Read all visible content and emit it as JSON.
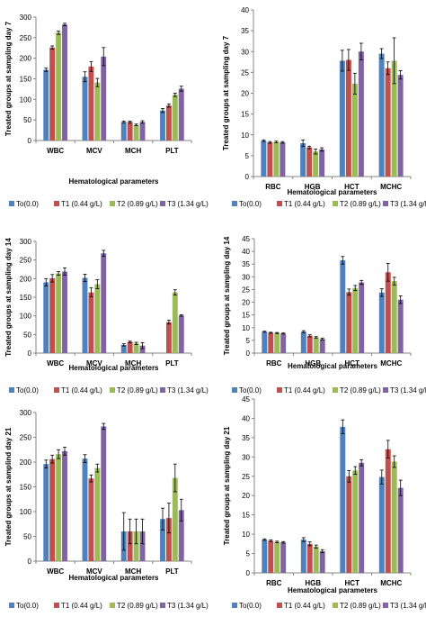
{
  "colors": {
    "series": [
      "#4F81BD",
      "#C0504D",
      "#9BBB59",
      "#8064A2"
    ],
    "axis": "#868686",
    "errorbar": "#000000"
  },
  "chart_data": [
    {
      "type": "bar",
      "ylabel": "Treated groups at sampling day 7",
      "xlabel": "Hematological parameters",
      "categories": [
        "WBC",
        "MCV",
        "MCH",
        "PLT"
      ],
      "ylim": [
        0,
        300
      ],
      "yticks": [
        0,
        50,
        100,
        150,
        200,
        250,
        300
      ],
      "grid": false,
      "legend_position": "bottom",
      "series": [
        {
          "name": "To(0.0)",
          "values": [
            172,
            155,
            45,
            73
          ],
          "errors": [
            4,
            12,
            2,
            5
          ]
        },
        {
          "name": "T1 (0.44 g/L)",
          "values": [
            226,
            180,
            45,
            85
          ],
          "errors": [
            4,
            12,
            2,
            4
          ]
        },
        {
          "name": "T2 (0.89 g/L)",
          "values": [
            262,
            141,
            38,
            111
          ],
          "errors": [
            4,
            10,
            2,
            4
          ]
        },
        {
          "name": "T3 (1.34 g/L)",
          "values": [
            282,
            204,
            45,
            126
          ],
          "errors": [
            3,
            22,
            3,
            6
          ]
        }
      ]
    },
    {
      "type": "bar",
      "ylabel": "Treated groups at sampling day 7",
      "xlabel": "Hematological parameters",
      "categories": [
        "RBC",
        "HGB",
        "HCT",
        "MCHC"
      ],
      "ylim": [
        0,
        40
      ],
      "yticks": [
        0,
        5,
        10,
        15,
        20,
        25,
        30,
        35,
        40
      ],
      "grid": false,
      "legend_position": "bottom",
      "series": [
        {
          "name": "To(0.0)",
          "values": [
            8.6,
            8.0,
            27.8,
            29.5
          ],
          "errors": [
            0.2,
            0.8,
            2.5,
            1.2
          ]
        },
        {
          "name": "T1 (0.44 g/L)",
          "values": [
            8.2,
            7.0,
            28.0,
            26.0
          ],
          "errors": [
            0.2,
            0.3,
            2.5,
            1.5
          ]
        },
        {
          "name": "T2 (0.89 g/L)",
          "values": [
            8.3,
            6.0,
            22.3,
            27.8
          ],
          "errors": [
            0.2,
            0.6,
            2.5,
            5.5
          ]
        },
        {
          "name": "T3 (1.34 g/L)",
          "values": [
            8.2,
            6.5,
            30.0,
            24.4
          ],
          "errors": [
            0.2,
            0.4,
            2.0,
            1.0
          ]
        }
      ]
    },
    {
      "type": "bar",
      "ylabel": "Treated groups at sampling day 14",
      "xlabel": "Hematological parameters",
      "categories": [
        "WBC",
        "MCV",
        "MCH",
        "PLT"
      ],
      "ylim": [
        0,
        300
      ],
      "yticks": [
        0,
        50,
        100,
        150,
        200,
        250,
        300
      ],
      "grid": false,
      "legend_position": "bottom",
      "series": [
        {
          "name": "To(0.0)",
          "values": [
            190,
            202,
            22,
            0
          ],
          "errors": [
            10,
            10,
            3,
            0
          ]
        },
        {
          "name": "T1 (0.44 g/L)",
          "values": [
            201,
            163,
            30,
            83
          ],
          "errors": [
            10,
            12,
            2,
            5
          ]
        },
        {
          "name": "T2 (0.89 g/L)",
          "values": [
            214,
            185,
            26,
            163
          ],
          "errors": [
            5,
            12,
            3,
            7
          ]
        },
        {
          "name": "T3 (1.34 g/L)",
          "values": [
            219,
            268,
            20,
            101
          ],
          "errors": [
            10,
            8,
            8,
            2
          ]
        }
      ]
    },
    {
      "type": "bar",
      "ylabel": "Treated groups at sampling day 14",
      "xlabel": "Hematological parameters",
      "categories": [
        "RBC",
        "HGB",
        "HCT",
        "MCHC"
      ],
      "ylim": [
        0,
        45
      ],
      "yticks": [
        0,
        5,
        10,
        15,
        20,
        25,
        30,
        35,
        40,
        45
      ],
      "grid": false,
      "legend_position": "bottom",
      "series": [
        {
          "name": "To(0.0)",
          "values": [
            8.4,
            8.4,
            36.5,
            23.8
          ],
          "errors": [
            0.2,
            0.4,
            1.5,
            1.5
          ]
        },
        {
          "name": "T1 (0.44 g/L)",
          "values": [
            8.0,
            6.8,
            24.0,
            31.8
          ],
          "errors": [
            0.2,
            0.4,
            1.2,
            3.5
          ]
        },
        {
          "name": "T2 (0.89 g/L)",
          "values": [
            7.9,
            6.2,
            25.6,
            28.3
          ],
          "errors": [
            0.2,
            0.3,
            1.0,
            1.5
          ]
        },
        {
          "name": "T3 (1.34 g/L)",
          "values": [
            7.7,
            5.5,
            27.8,
            21.0
          ],
          "errors": [
            0.2,
            0.4,
            0.8,
            1.5
          ]
        }
      ]
    },
    {
      "type": "bar",
      "ylabel": "Treated groups at samplind day 21",
      "xlabel": "Hematological parameters",
      "categories": [
        "WBC",
        "MCV",
        "MCH",
        "PLT"
      ],
      "ylim": [
        0,
        300
      ],
      "yticks": [
        0,
        50,
        100,
        150,
        200,
        250,
        300
      ],
      "grid": false,
      "legend_position": "bottom",
      "series": [
        {
          "name": "To(0.0)",
          "values": [
            196,
            207,
            60,
            85
          ],
          "errors": [
            8,
            8,
            38,
            22
          ]
        },
        {
          "name": "T1 (0.44 g/L)",
          "values": [
            206,
            167,
            60,
            87
          ],
          "errors": [
            8,
            7,
            25,
            30
          ]
        },
        {
          "name": "T2 (0.89 g/L)",
          "values": [
            216,
            188,
            60,
            168
          ],
          "errors": [
            9,
            8,
            25,
            28
          ]
        },
        {
          "name": "T3 (1.34 g/L)",
          "values": [
            222,
            272,
            60,
            103
          ],
          "errors": [
            8,
            6,
            25,
            22
          ]
        }
      ]
    },
    {
      "type": "bar",
      "ylabel": "Treated groups at sampling day 21",
      "xlabel": "Hematological parameters",
      "categories": [
        "RBC",
        "HGB",
        "HCT",
        "MCHC"
      ],
      "ylim": [
        0,
        45
      ],
      "yticks": [
        0,
        5,
        10,
        15,
        20,
        25,
        30,
        35,
        40,
        45
      ],
      "grid": false,
      "legend_position": "bottom",
      "series": [
        {
          "name": "To(0.0)",
          "values": [
            8.6,
            8.6,
            37.8,
            24.8
          ],
          "errors": [
            0.2,
            0.5,
            1.8,
            1.8
          ]
        },
        {
          "name": "T1 (0.44 g/L)",
          "values": [
            8.3,
            7.5,
            25.0,
            32.0
          ],
          "errors": [
            0.2,
            0.5,
            1.5,
            2.3
          ]
        },
        {
          "name": "T2 (0.89 g/L)",
          "values": [
            8.0,
            6.8,
            26.5,
            28.8
          ],
          "errors": [
            0.2,
            0.4,
            1.0,
            1.5
          ]
        },
        {
          "name": "T3 (1.34 g/L)",
          "values": [
            7.9,
            5.6,
            28.5,
            22.0
          ],
          "errors": [
            0.2,
            0.4,
            0.8,
            2.0
          ]
        }
      ]
    }
  ]
}
